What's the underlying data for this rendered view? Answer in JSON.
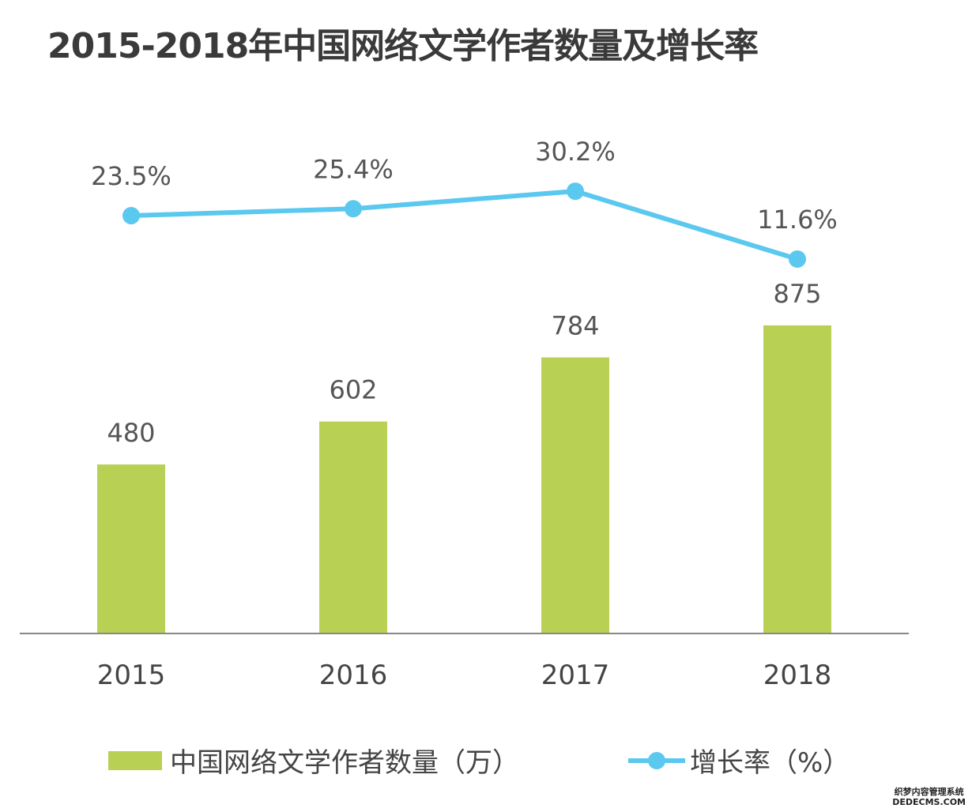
{
  "chart_data": {
    "type": "bar+line",
    "title": "2015-2018年中国网络文学作者数量及增长率",
    "categories": [
      "2015",
      "2016",
      "2017",
      "2018"
    ],
    "series": [
      {
        "name": "中国网络文学作者数量（万）",
        "type": "bar",
        "values": [
          480,
          602,
          784,
          875
        ],
        "labels": [
          "480",
          "602",
          "784",
          "875"
        ],
        "color": "#b8d155"
      },
      {
        "name": "增长率（%）",
        "type": "line",
        "values": [
          23.5,
          25.4,
          30.2,
          11.6
        ],
        "labels": [
          "23.5%",
          "25.4%",
          "30.2%",
          "11.6%"
        ],
        "color": "#5bc8ef"
      }
    ],
    "grid": false,
    "legend": "bottom"
  },
  "watermark": {
    "line1": "织梦内容管理系统",
    "line2": "DEDECMS.COM"
  }
}
